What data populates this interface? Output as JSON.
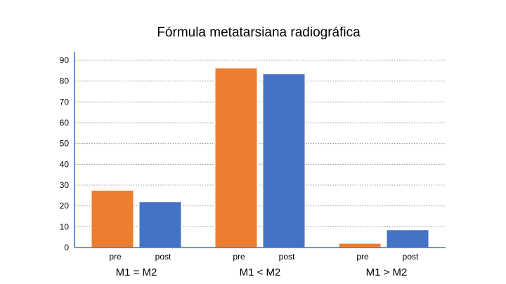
{
  "chart_data": {
    "type": "bar",
    "title": "Fórmula metatarsiana radiográfica",
    "groups": [
      "M1 = M2",
      "M1 < M2",
      "M1 > M2"
    ],
    "series": [
      {
        "name": "pre",
        "color": "#ed7d31",
        "values": [
          27.5,
          86.3,
          2
        ]
      },
      {
        "name": "post",
        "color": "#4472c4",
        "values": [
          22,
          83.5,
          8.5
        ]
      }
    ],
    "ylim": [
      0,
      90
    ],
    "yticks": [
      0,
      10,
      20,
      30,
      40,
      50,
      60,
      70,
      80,
      90
    ],
    "grid": true,
    "legend": "none"
  }
}
